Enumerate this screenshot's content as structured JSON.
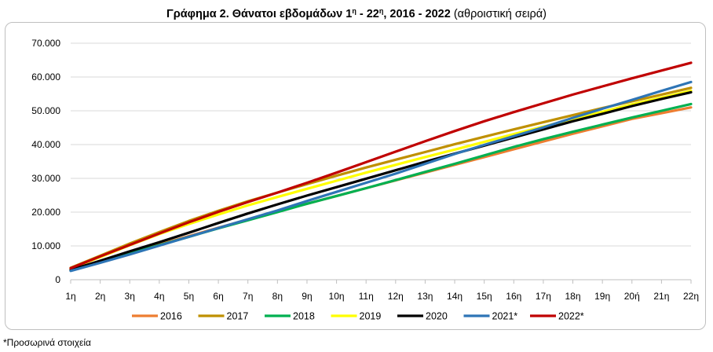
{
  "title_main": "Γράφημα 2. Θάνατοι εβδομάδων 1",
  "title_sup1": "η",
  "title_mid": " - 22",
  "title_sup2": "η",
  "title_years": ", 2016 - 2022",
  "title_note": " (αθροιστική σειρά)",
  "footnote": "*Προσωρινά στοιχεία",
  "chart_data": {
    "type": "line",
    "categories": [
      "1η",
      "2η",
      "3η",
      "4η",
      "5η",
      "6η",
      "7η",
      "8η",
      "9η",
      "10η",
      "11η",
      "12η",
      "13η",
      "14η",
      "15η",
      "16η",
      "17η",
      "18η",
      "19η",
      "20ή",
      "21η",
      "22η"
    ],
    "ylim": [
      0,
      70000
    ],
    "yticks": [
      0,
      10000,
      20000,
      30000,
      40000,
      50000,
      60000,
      70000
    ],
    "ytick_labels": [
      "0",
      "10.000",
      "20.000",
      "30.000",
      "40.000",
      "50.000",
      "60.000",
      "70.000"
    ],
    "grid": "horizontal",
    "legend_position": "bottom",
    "series": [
      {
        "name": "2016",
        "color": "#ed7d31",
        "values": [
          2800,
          5300,
          7800,
          10400,
          12900,
          15400,
          17800,
          20200,
          22500,
          24800,
          27100,
          29400,
          31700,
          34000,
          36300,
          38600,
          40900,
          43200,
          45400,
          47600,
          49300,
          51000
        ]
      },
      {
        "name": "2017",
        "color": "#bf9000",
        "values": [
          3500,
          7100,
          10700,
          14100,
          17400,
          20400,
          23200,
          25800,
          28300,
          30800,
          33200,
          35500,
          37800,
          40100,
          42300,
          44500,
          46600,
          48700,
          50800,
          52800,
          54800,
          56800
        ]
      },
      {
        "name": "2018",
        "color": "#00b050",
        "values": [
          2700,
          5300,
          7800,
          10200,
          12700,
          15200,
          17600,
          20000,
          22500,
          24800,
          27100,
          29500,
          31900,
          34300,
          36800,
          39300,
          41600,
          43800,
          45900,
          48000,
          50000,
          52000
        ]
      },
      {
        "name": "2019",
        "color": "#ffff00",
        "values": [
          3300,
          6700,
          10200,
          13500,
          16500,
          19300,
          22000,
          24500,
          26900,
          29300,
          31700,
          34000,
          36300,
          38500,
          40800,
          43100,
          45300,
          47500,
          49700,
          51900,
          53900,
          55900
        ]
      },
      {
        "name": "2020",
        "color": "#000000",
        "values": [
          2900,
          5600,
          8400,
          11100,
          13900,
          16800,
          19600,
          22300,
          24900,
          27400,
          29900,
          32400,
          34900,
          37300,
          39700,
          42100,
          44500,
          46900,
          49100,
          51400,
          53500,
          55500
        ]
      },
      {
        "name": "2021*",
        "color": "#2e75b6",
        "values": [
          2600,
          5000,
          7500,
          10100,
          12700,
          15300,
          17900,
          20500,
          23300,
          26000,
          28700,
          31400,
          34300,
          37200,
          39900,
          42500,
          45100,
          47900,
          50600,
          53200,
          55900,
          58500
        ]
      },
      {
        "name": "2022*",
        "color": "#c00000",
        "values": [
          3400,
          6900,
          10300,
          13700,
          17000,
          20100,
          23000,
          25800,
          28700,
          31700,
          34800,
          37900,
          41000,
          44000,
          46900,
          49600,
          52200,
          54800,
          57200,
          59600,
          61900,
          64200
        ]
      }
    ]
  }
}
